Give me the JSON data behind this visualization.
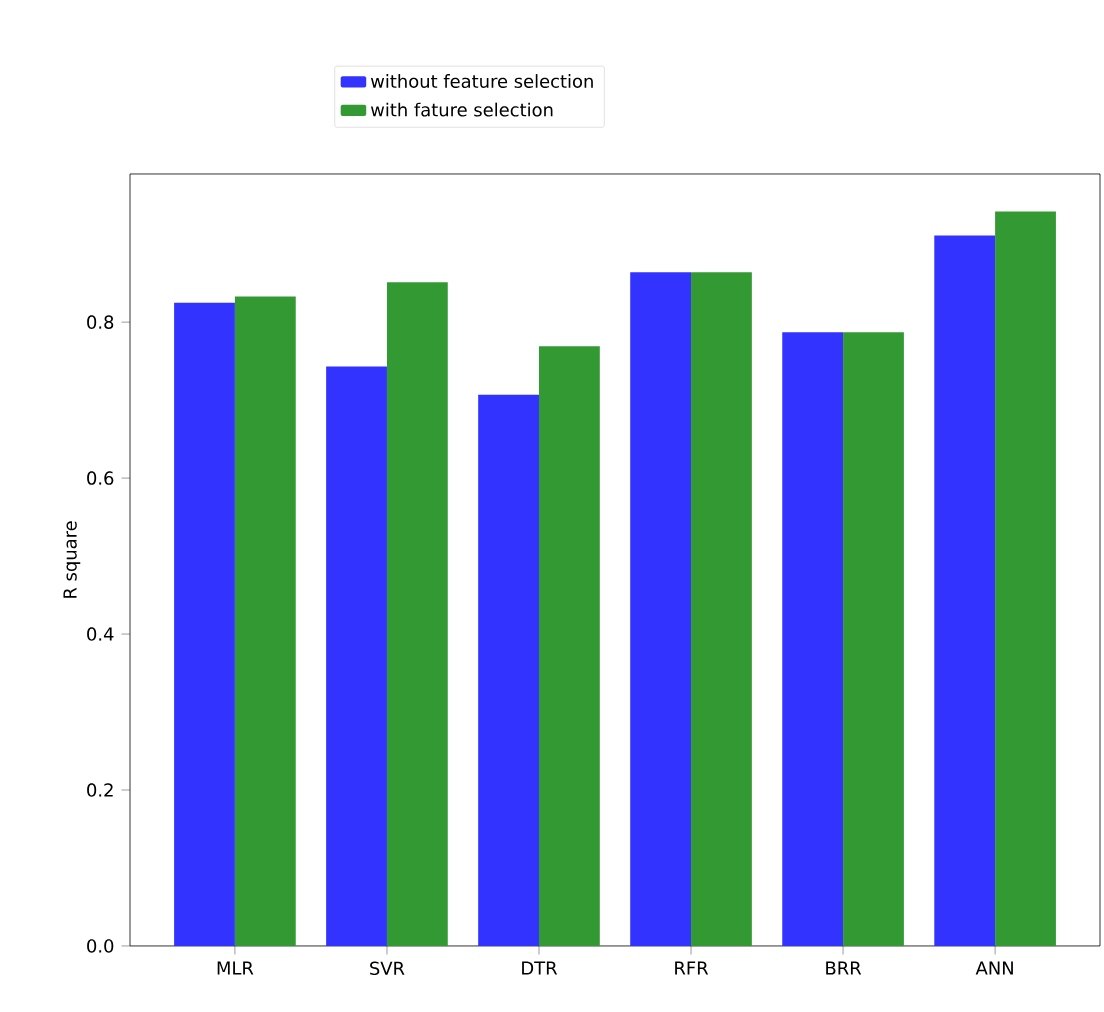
{
  "chart_data": {
    "type": "bar",
    "ylabel": "R square",
    "categories": [
      "MLR",
      "SVR",
      "DTR",
      "RFR",
      "BRR",
      "ANN"
    ],
    "series": [
      {
        "name": "without feature selection",
        "color": "#3333ff",
        "values": [
          0.825,
          0.743,
          0.707,
          0.864,
          0.787,
          0.911
        ]
      },
      {
        "name": "with fature selection",
        "color": "#339933",
        "values": [
          0.833,
          0.851,
          0.769,
          0.864,
          0.787,
          0.942
        ]
      }
    ],
    "ylim": [
      0,
      0.99
    ],
    "yticks": [
      {
        "value": 0,
        "label": "0.0"
      },
      0.2,
      0.4,
      0.6,
      0.8
    ],
    "grid": false,
    "legend": "top"
  }
}
